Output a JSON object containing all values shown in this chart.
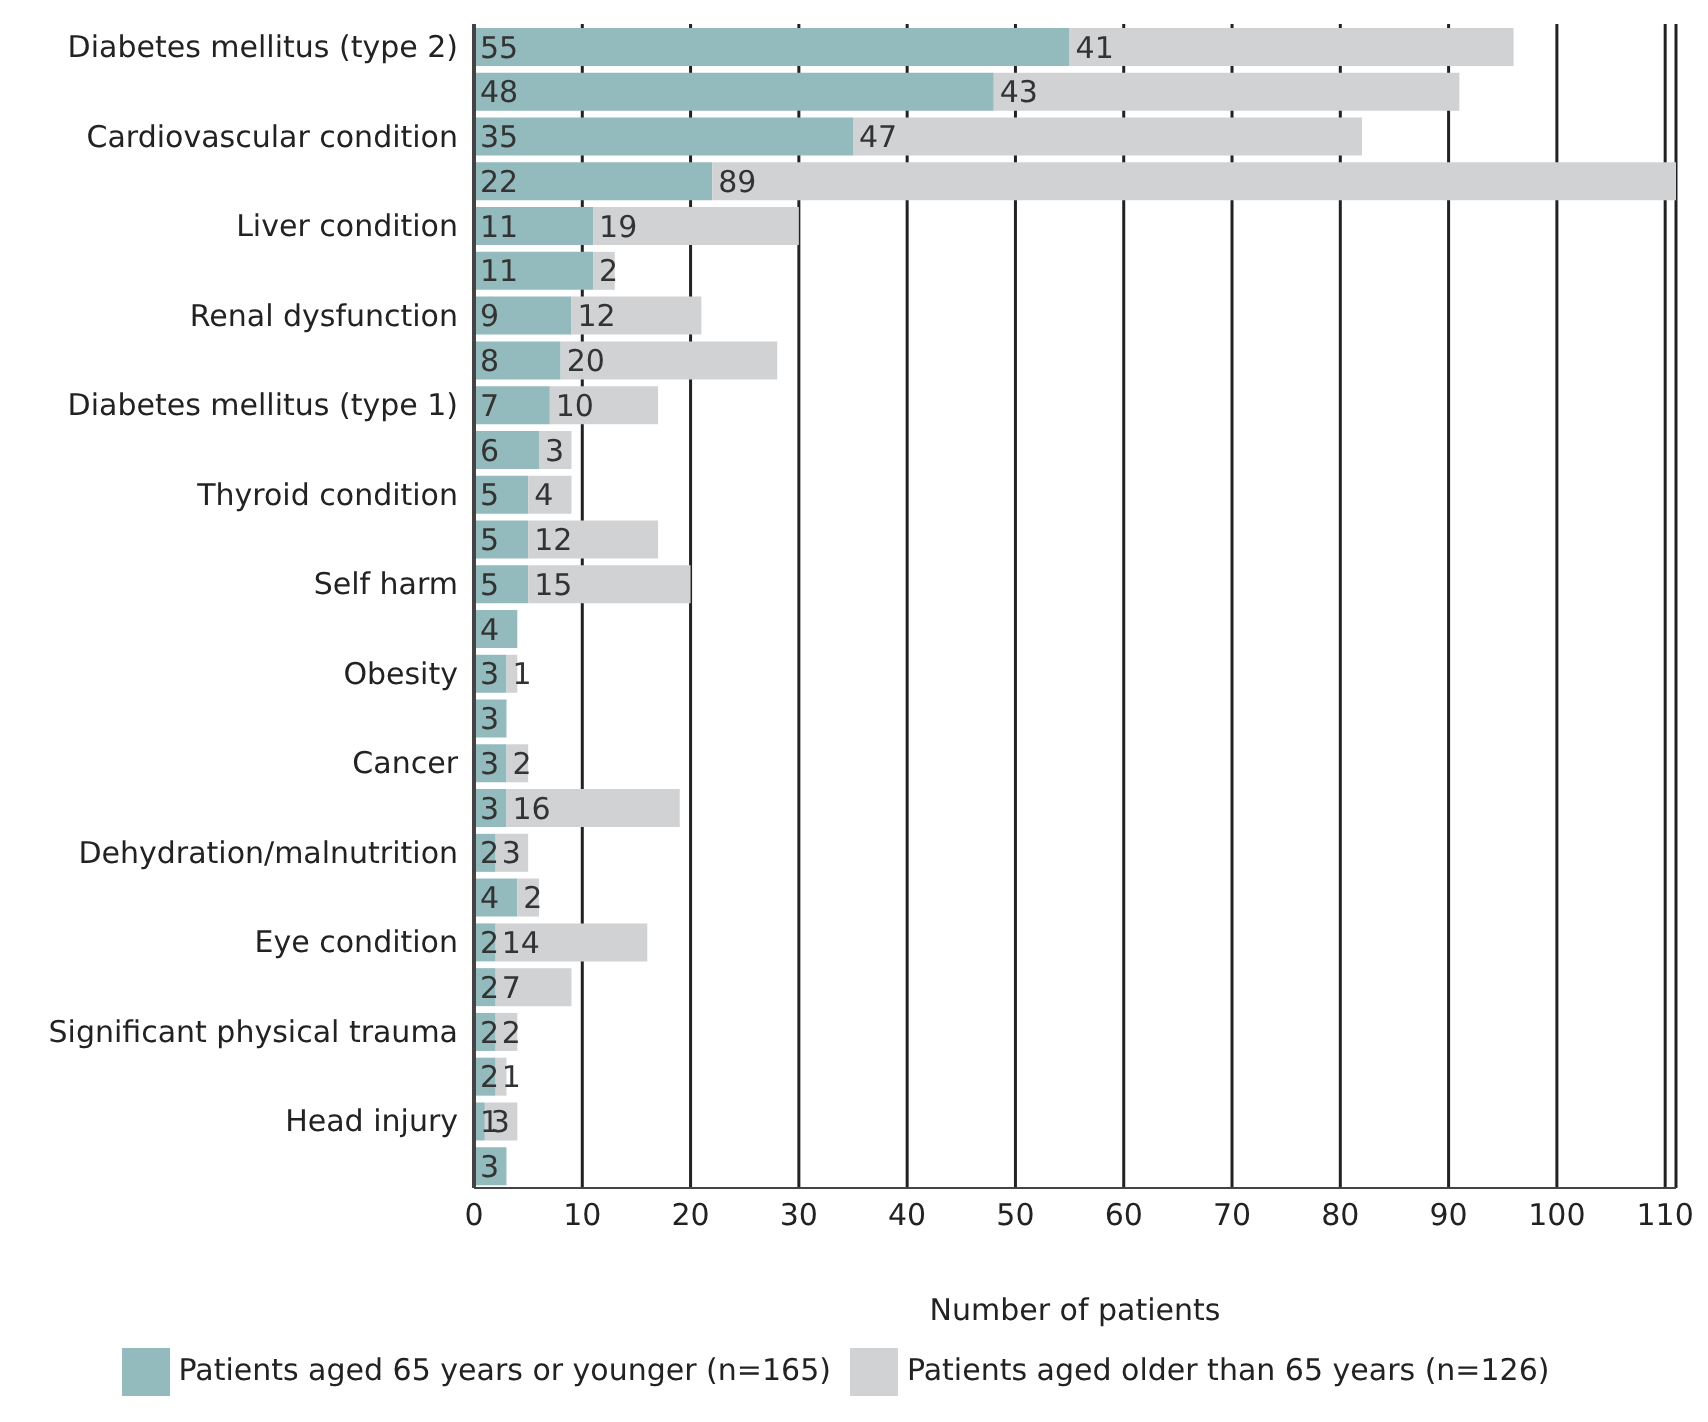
{
  "chart_data": {
    "type": "bar",
    "orientation": "horizontal",
    "stacked": true,
    "xlabel": "Number of patients",
    "categories": [
      "Diabetes mellitus (type 2)",
      null,
      "Cardiovascular condition",
      null,
      "Liver condition",
      null,
      "Renal dysfunction",
      null,
      "Diabetes mellitus (type 1)",
      null,
      "Thyroid condition",
      null,
      "Self harm",
      null,
      "Obesity",
      null,
      "Cancer",
      null,
      "Dehydration/malnutrition",
      null,
      "Eye condition",
      null,
      "Significant physical trauma",
      null,
      "Head injury",
      null
    ],
    "series": [
      {
        "name": "Patients aged 65 years or younger (n=165)",
        "color": "#93babd",
        "values": [
          55,
          48,
          35,
          22,
          11,
          11,
          9,
          8,
          7,
          6,
          5,
          5,
          5,
          4,
          3,
          3,
          3,
          3,
          2,
          4,
          2,
          2,
          2,
          2,
          1,
          3
        ]
      },
      {
        "name": "Patients aged older than 65 years (n=126)",
        "color": "#d1d2d4",
        "values": [
          41,
          43,
          47,
          89,
          19,
          2,
          12,
          20,
          10,
          3,
          4,
          12,
          15,
          null,
          1,
          null,
          2,
          16,
          3,
          2,
          14,
          7,
          2,
          1,
          3,
          null
        ]
      }
    ],
    "xlim": [
      0,
      111
    ],
    "xticks": [
      0,
      10,
      20,
      30,
      40,
      50,
      60,
      70,
      80,
      90,
      100,
      110
    ],
    "grid": "x",
    "legend": "bottom",
    "data_labels": true
  }
}
